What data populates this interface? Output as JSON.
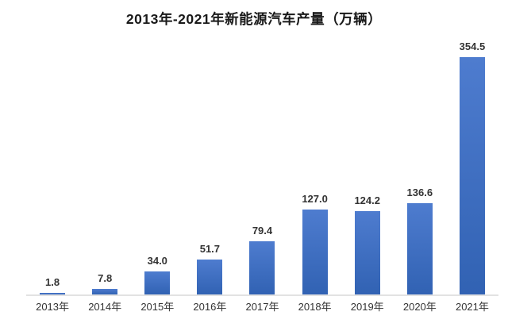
{
  "chart_data": {
    "type": "bar",
    "title": "2013年-2021年新能源汽车产量（万辆）",
    "xlabel": "",
    "ylabel": "",
    "unit": "万辆",
    "categories": [
      "2013年",
      "2014年",
      "2015年",
      "2016年",
      "2017年",
      "2018年",
      "2019年",
      "2020年",
      "2021年"
    ],
    "values": [
      1.8,
      7.8,
      34.0,
      51.7,
      79.4,
      127.0,
      124.2,
      136.6,
      354.5
    ],
    "value_labels": [
      "1.8",
      "7.8",
      "34.0",
      "51.7",
      "79.4",
      "127.0",
      "124.2",
      "136.6",
      "354.5"
    ],
    "ylim": [
      0,
      400
    ],
    "grid": false,
    "legend_position": "none",
    "colors": {
      "bar_top": "#4e7ccf",
      "bar_bottom": "#3162b3",
      "axis_line": "#e2e2e2",
      "value_label": "#333333",
      "axis_label": "#333333",
      "title": "#1a1a1a",
      "background": "#ffffff"
    }
  }
}
